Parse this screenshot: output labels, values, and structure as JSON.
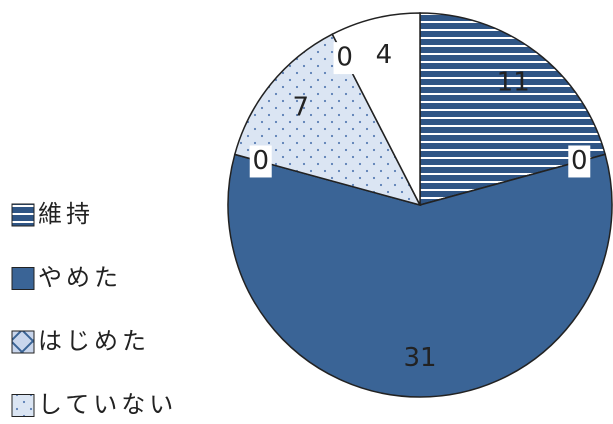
{
  "chart_data": {
    "type": "pie",
    "categories": [
      "維持",
      null,
      "やめた",
      "はじめた",
      "していない",
      null,
      null
    ],
    "values": [
      11,
      0,
      31,
      0,
      7,
      0,
      4
    ],
    "colors": [
      "#2f5585",
      "#ffffff",
      "#3a6496",
      "#8eaadb",
      "#dbe5f3",
      "#ffffff",
      "#ffffff"
    ],
    "patterns": [
      "stripes",
      "solid",
      "solid",
      "cross",
      "dots",
      "solid",
      "solid"
    ]
  }
}
